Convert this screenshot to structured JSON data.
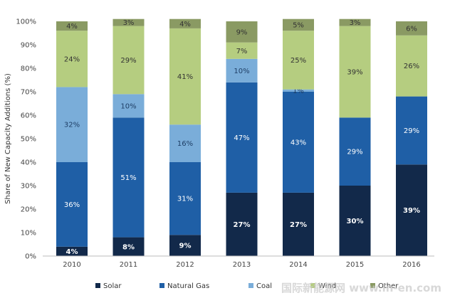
{
  "chart_data": {
    "type": "bar",
    "stacked": true,
    "ylabel": "Share of New Capacity Additions (%)",
    "xlabel": "",
    "ylim": [
      0,
      100
    ],
    "yticks": [
      "0%",
      "10%",
      "20%",
      "30%",
      "40%",
      "50%",
      "60%",
      "70%",
      "80%",
      "90%",
      "100%"
    ],
    "categories": [
      "2010",
      "2011",
      "2012",
      "2013",
      "2014",
      "2015",
      "2016"
    ],
    "series": [
      {
        "name": "Solar",
        "color": "#12294a",
        "text_color": "#ffffff",
        "bold": true,
        "values": [
          4,
          8,
          9,
          27,
          27,
          30,
          39
        ],
        "labels": [
          "4%",
          "8%",
          "9%",
          "27%",
          "27%",
          "30%",
          "39%"
        ]
      },
      {
        "name": "Natural Gas",
        "color": "#1f5fa6",
        "text_color": "#ffffff",
        "bold": false,
        "values": [
          36,
          51,
          31,
          47,
          43,
          29,
          29
        ],
        "labels": [
          "36%",
          "51%",
          "31%",
          "47%",
          "43%",
          "29%",
          "29%"
        ]
      },
      {
        "name": "Coal",
        "color": "#7aadd9",
        "text_color": "#1f3f66",
        "bold": false,
        "values": [
          32,
          10,
          16,
          10,
          1,
          0,
          0
        ],
        "labels": [
          "32%",
          "10%",
          "16%",
          "10%",
          "1%",
          "",
          ""
        ]
      },
      {
        "name": "Wind",
        "color": "#b5cd80",
        "text_color": "#333333",
        "bold": false,
        "values": [
          24,
          29,
          41,
          7,
          25,
          39,
          26
        ],
        "labels": [
          "24%",
          "29%",
          "41%",
          "7%",
          "25%",
          "39%",
          "26%"
        ]
      },
      {
        "name": "Other",
        "color": "#8a9a63",
        "text_color": "#333333",
        "bold": false,
        "values": [
          4,
          3,
          4,
          9,
          5,
          3,
          6
        ],
        "labels": [
          "4%",
          "3%",
          "4%",
          "9%",
          "5%",
          "3%",
          "6%"
        ]
      }
    ],
    "legend": "bottom",
    "grid": false
  },
  "watermark": "国际新能源网 www.in-en.com"
}
